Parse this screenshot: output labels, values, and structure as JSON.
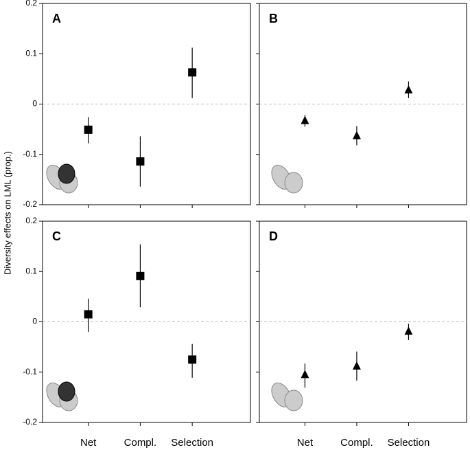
{
  "ylabel": "Diversity effects on LML (prop.)",
  "chart_data": [
    {
      "type": "errorpoint",
      "panel_label": "A",
      "marker": "square",
      "show_ytick_labels": true,
      "show_xtick_labels": false,
      "categories": [
        "Net",
        "Compl.",
        "Selection"
      ],
      "values": [
        -0.051,
        -0.114,
        0.063
      ],
      "lower": [
        -0.078,
        -0.164,
        0.012
      ],
      "upper": [
        -0.026,
        -0.064,
        0.112
      ],
      "ylim": [
        -0.2,
        0.2
      ],
      "yticks": [
        -0.2,
        -0.1,
        0,
        0.1,
        0.2
      ],
      "zero_line": true,
      "color": "#000000"
    },
    {
      "type": "errorpoint",
      "panel_label": "B",
      "marker": "triangle",
      "show_ytick_labels": false,
      "show_xtick_labels": false,
      "categories": [
        "Net",
        "Compl.",
        "Selection"
      ],
      "values": [
        -0.033,
        -0.063,
        0.028
      ],
      "lower": [
        -0.045,
        -0.082,
        0.012
      ],
      "upper": [
        -0.022,
        -0.044,
        0.045
      ],
      "ylim": [
        -0.2,
        0.2
      ],
      "yticks": [
        -0.2,
        -0.1,
        0,
        0.1,
        0.2
      ],
      "zero_line": true,
      "color": "#000000"
    },
    {
      "type": "errorpoint",
      "panel_label": "C",
      "marker": "square",
      "show_ytick_labels": true,
      "show_xtick_labels": true,
      "categories": [
        "Net",
        "Compl.",
        "Selection"
      ],
      "values": [
        0.015,
        0.091,
        -0.075
      ],
      "lower": [
        -0.02,
        0.029,
        -0.111
      ],
      "upper": [
        0.046,
        0.154,
        -0.044
      ],
      "ylim": [
        -0.2,
        0.2
      ],
      "yticks": [
        -0.2,
        -0.1,
        0,
        0.1,
        0.2
      ],
      "zero_line": true,
      "color": "#000000"
    },
    {
      "type": "errorpoint",
      "panel_label": "D",
      "marker": "triangle",
      "show_ytick_labels": false,
      "show_xtick_labels": true,
      "categories": [
        "Net",
        "Compl.",
        "Selection"
      ],
      "values": [
        -0.105,
        -0.088,
        -0.019
      ],
      "lower": [
        -0.131,
        -0.117,
        -0.036
      ],
      "upper": [
        -0.083,
        -0.059,
        -0.004
      ],
      "ylim": [
        -0.2,
        0.2
      ],
      "yticks": [
        -0.2,
        -0.1,
        0,
        0.1,
        0.2
      ],
      "zero_line": true,
      "color": "#000000"
    }
  ]
}
